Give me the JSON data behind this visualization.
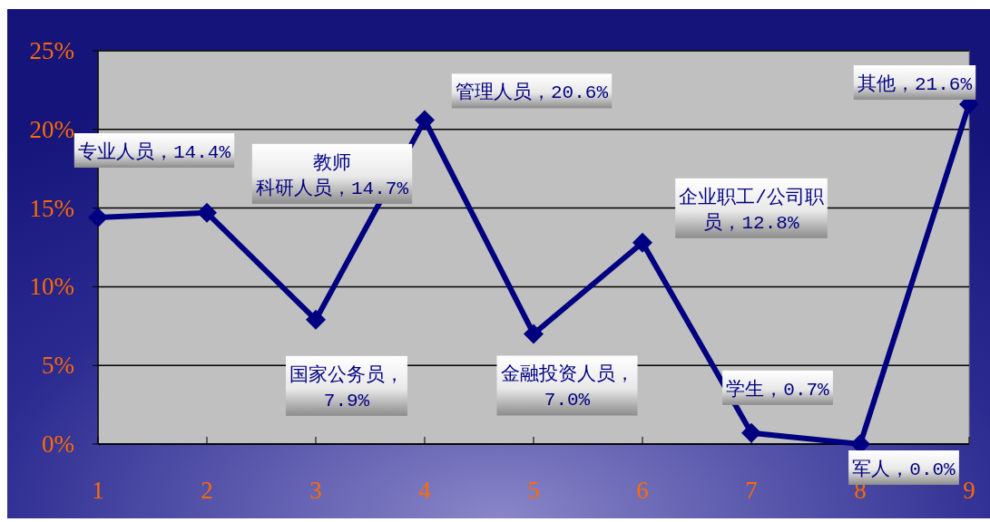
{
  "chart_data": {
    "type": "line",
    "x": [
      1,
      2,
      3,
      4,
      5,
      6,
      7,
      8,
      9
    ],
    "values": [
      14.4,
      14.7,
      7.9,
      20.6,
      7.0,
      12.8,
      0.7,
      0.0,
      21.6
    ],
    "color": "#000080",
    "marker": "diamond",
    "grid": "y",
    "xlim": [
      1,
      9
    ],
    "xticks": [
      1,
      2,
      3,
      4,
      5,
      6,
      7,
      8,
      9
    ],
    "ylim": [
      0,
      25
    ],
    "yticks": [
      {
        "value": 0,
        "label": "0%"
      },
      {
        "value": 5,
        "label": "5%"
      },
      {
        "value": 10,
        "label": "10%"
      },
      {
        "value": 15,
        "label": "15%"
      },
      {
        "value": 20,
        "label": "20%"
      },
      {
        "value": 25,
        "label": "25%"
      }
    ],
    "annotations": [
      {
        "text": "专业人员，14.4%",
        "x": 1,
        "y": 14.4
      },
      {
        "text": "教师科研人员，14.7%",
        "x": 2,
        "y": 14.7
      },
      {
        "text": "国家公务员，7.9%",
        "x": 3,
        "y": 7.9
      },
      {
        "text": "管理人员，20.6%",
        "x": 4,
        "y": 20.6
      },
      {
        "text": "金融投资人员，7.0%",
        "x": 5,
        "y": 7.0
      },
      {
        "text": "企业职工/公司职员，12.8%",
        "x": 6,
        "y": 12.8
      },
      {
        "text": "学生，0.7%",
        "x": 7,
        "y": 0.7
      },
      {
        "text": "军人，0.0%",
        "x": 8,
        "y": 0.0
      },
      {
        "text": "其他，21.6%",
        "x": 9,
        "y": 21.6
      }
    ]
  }
}
